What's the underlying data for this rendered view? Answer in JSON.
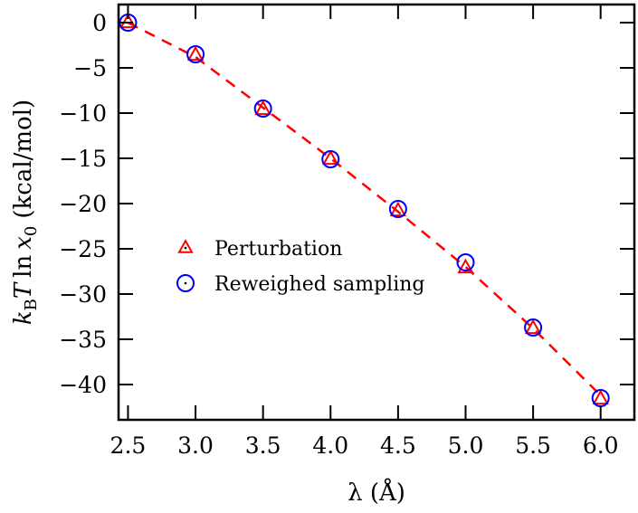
{
  "chart_data": {
    "type": "scatter",
    "title": "",
    "xlabel": "λ (Å)",
    "ylabel": "k_B T ln x_0 (kcal/mol)",
    "ylabel_parts": {
      "k": "k",
      "sub_B": "B",
      "T": "T",
      "ln": "ln",
      "x": "x",
      "sub_0": "0",
      "unit": "(kcal/mol)"
    },
    "xlim": [
      2.43,
      6.25
    ],
    "ylim": [
      -43.9,
      2.0
    ],
    "xticks": [
      2.5,
      3.0,
      3.5,
      4.0,
      4.5,
      5.0,
      5.5,
      6.0
    ],
    "xtick_labels": [
      "2.5",
      "3.0",
      "3.5",
      "4.0",
      "4.5",
      "5.0",
      "5.5",
      "6.0"
    ],
    "yticks": [
      0,
      -5,
      -10,
      -15,
      -20,
      -25,
      -30,
      -35,
      -40
    ],
    "ytick_labels": [
      "0",
      "−5",
      "−10",
      "−15",
      "−20",
      "−25",
      "−30",
      "−35",
      "−40"
    ],
    "grid": false,
    "legend_position": "center-left",
    "series": [
      {
        "name": "Perturbation",
        "marker": "triangle",
        "color": "#ff0000",
        "x": [
          2.5,
          3.0,
          3.5,
          4.0,
          4.5,
          5.0,
          5.5,
          6.0
        ],
        "y": [
          0.0,
          -3.6,
          -9.6,
          -15.1,
          -20.8,
          -27.1,
          -33.8,
          -41.6
        ]
      },
      {
        "name": "Reweighed sampling",
        "marker": "circle",
        "color": "#0000ff",
        "x": [
          2.5,
          3.0,
          3.5,
          4.0,
          4.5,
          5.0,
          5.5,
          6.0
        ],
        "y": [
          0.0,
          -3.5,
          -9.5,
          -15.1,
          -20.6,
          -26.5,
          -33.7,
          -41.5
        ]
      }
    ],
    "fit_line": {
      "style": "dashed",
      "color": "#ff0000",
      "x": [
        2.5,
        3.0,
        3.5,
        4.0,
        4.5,
        5.0,
        5.5,
        6.0
      ],
      "y": [
        0.0,
        -3.8,
        -9.4,
        -15.0,
        -20.9,
        -27.0,
        -33.8,
        -41.2
      ]
    }
  }
}
